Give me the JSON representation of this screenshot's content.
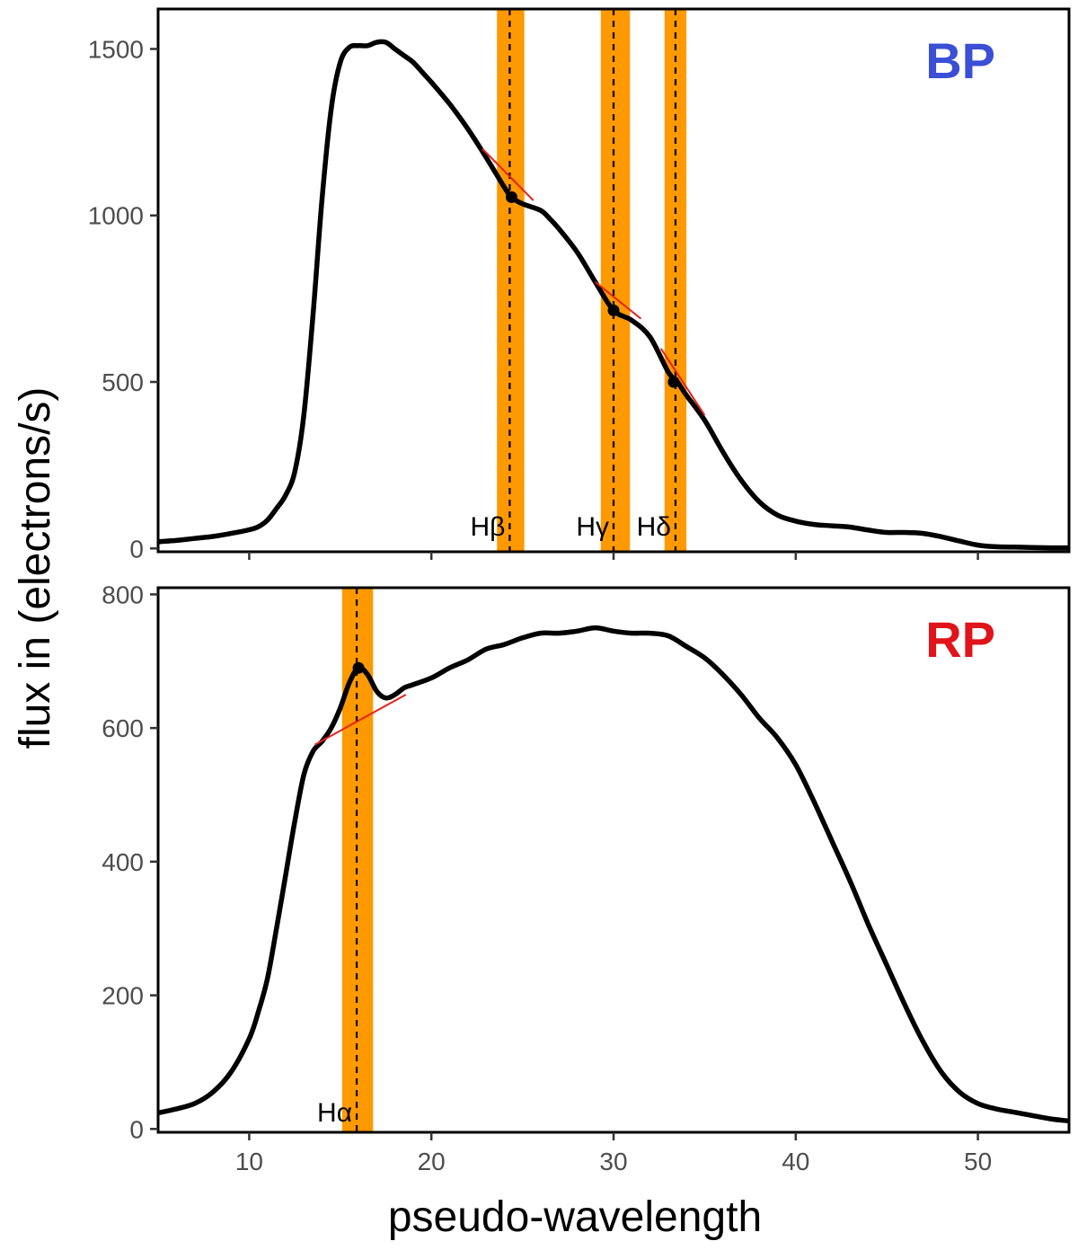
{
  "chart_data": [
    {
      "type": "line",
      "panel_label": "BP",
      "panel_label_color": "#3a4fd6",
      "xlim": [
        5,
        55
      ],
      "ylim": [
        -10,
        1620
      ],
      "yticks": [
        0,
        500,
        1000,
        1500
      ],
      "xticks": [
        10,
        20,
        30,
        40,
        50
      ],
      "show_x_tick_labels": false,
      "series": [
        {
          "name": "BP spectrum",
          "color": "#000000",
          "points": [
            [
              5,
              20
            ],
            [
              6,
              24
            ],
            [
              7,
              30
            ],
            [
              8,
              36
            ],
            [
              9,
              45
            ],
            [
              10,
              56
            ],
            [
              10.5,
              65
            ],
            [
              11,
              85
            ],
            [
              11.5,
              120
            ],
            [
              12,
              160
            ],
            [
              12.5,
              230
            ],
            [
              13,
              400
            ],
            [
              13.5,
              700
            ],
            [
              14,
              1050
            ],
            [
              14.5,
              1320
            ],
            [
              15,
              1460
            ],
            [
              15.5,
              1505
            ],
            [
              16,
              1510
            ],
            [
              16.5,
              1510
            ],
            [
              17,
              1520
            ],
            [
              17.5,
              1520
            ],
            [
              18,
              1500
            ],
            [
              18.5,
              1480
            ],
            [
              19,
              1460
            ],
            [
              19.5,
              1430
            ],
            [
              20,
              1400
            ],
            [
              21,
              1335
            ],
            [
              22,
              1260
            ],
            [
              23,
              1175
            ],
            [
              24,
              1085
            ],
            [
              24.4,
              1055
            ],
            [
              25,
              1035
            ],
            [
              26,
              1015
            ],
            [
              26.5,
              990
            ],
            [
              27,
              960
            ],
            [
              28,
              890
            ],
            [
              29,
              800
            ],
            [
              30,
              715
            ],
            [
              31,
              685
            ],
            [
              32,
              635
            ],
            [
              33,
              530
            ],
            [
              33.5,
              500
            ],
            [
              34,
              460
            ],
            [
              35,
              385
            ],
            [
              36,
              290
            ],
            [
              37,
              205
            ],
            [
              38,
              140
            ],
            [
              39,
              100
            ],
            [
              40,
              82
            ],
            [
              41,
              72
            ],
            [
              42,
              68
            ],
            [
              43,
              64
            ],
            [
              44,
              55
            ],
            [
              45,
              48
            ],
            [
              46,
              48
            ],
            [
              47,
              45
            ],
            [
              48,
              35
            ],
            [
              49,
              22
            ],
            [
              50,
              10
            ],
            [
              51,
              5
            ],
            [
              52,
              4
            ],
            [
              53,
              3
            ],
            [
              54,
              2
            ],
            [
              55,
              2
            ]
          ]
        },
        {
          "name": "continuum segments",
          "color": "#e8201a",
          "segments": [
            [
              [
                22.8,
                1200
              ],
              [
                25.6,
                1045
              ]
            ],
            [
              [
                29.0,
                800
              ],
              [
                31.5,
                690
              ]
            ],
            [
              [
                32.6,
                600
              ],
              [
                35.0,
                400
              ]
            ]
          ]
        }
      ],
      "markers": [
        [
          24.4,
          1055
        ],
        [
          30.0,
          715
        ],
        [
          33.3,
          500
        ]
      ],
      "bands": [
        {
          "label": "Hβ",
          "xmin": 23.6,
          "xmax": 25.1,
          "center": 24.3
        },
        {
          "label": "Hγ",
          "xmin": 29.3,
          "xmax": 30.9,
          "center": 30.0
        },
        {
          "label": "Hδ",
          "xmin": 32.8,
          "xmax": 34.0,
          "center": 33.4
        }
      ]
    },
    {
      "type": "line",
      "panel_label": "RP",
      "panel_label_color": "#e0141a",
      "xlim": [
        5,
        55
      ],
      "ylim": [
        -5,
        810
      ],
      "yticks": [
        0,
        200,
        400,
        600,
        800
      ],
      "xticks": [
        10,
        20,
        30,
        40,
        50
      ],
      "show_x_tick_labels": true,
      "series": [
        {
          "name": "RP spectrum",
          "color": "#000000",
          "points": [
            [
              5,
              24
            ],
            [
              6,
              30
            ],
            [
              7,
              38
            ],
            [
              8,
              55
            ],
            [
              9,
              85
            ],
            [
              10,
              135
            ],
            [
              10.5,
              175
            ],
            [
              11,
              225
            ],
            [
              11.5,
              300
            ],
            [
              12,
              380
            ],
            [
              12.5,
              460
            ],
            [
              13,
              530
            ],
            [
              13.5,
              565
            ],
            [
              14,
              580
            ],
            [
              14.5,
              600
            ],
            [
              15,
              630
            ],
            [
              15.5,
              668
            ],
            [
              16,
              690
            ],
            [
              16.5,
              680
            ],
            [
              17,
              655
            ],
            [
              17.5,
              645
            ],
            [
              18,
              650
            ],
            [
              18.5,
              660
            ],
            [
              19,
              665
            ],
            [
              20,
              675
            ],
            [
              21,
              690
            ],
            [
              22,
              702
            ],
            [
              23,
              718
            ],
            [
              24,
              725
            ],
            [
              25,
              735
            ],
            [
              26,
              742
            ],
            [
              27,
              742
            ],
            [
              28,
              745
            ],
            [
              29,
              750
            ],
            [
              30,
              745
            ],
            [
              31,
              742
            ],
            [
              32,
              742
            ],
            [
              33,
              738
            ],
            [
              34,
              722
            ],
            [
              35,
              705
            ],
            [
              36,
              680
            ],
            [
              37,
              650
            ],
            [
              38,
              615
            ],
            [
              39,
              585
            ],
            [
              40,
              545
            ],
            [
              41,
              490
            ],
            [
              42,
              430
            ],
            [
              43,
              370
            ],
            [
              44,
              305
            ],
            [
              45,
              245
            ],
            [
              46,
              185
            ],
            [
              47,
              130
            ],
            [
              48,
              85
            ],
            [
              49,
              55
            ],
            [
              50,
              38
            ],
            [
              51,
              30
            ],
            [
              52,
              25
            ],
            [
              53,
              20
            ],
            [
              54,
              15
            ],
            [
              55,
              12
            ]
          ]
        },
        {
          "name": "continuum segments",
          "color": "#e8201a",
          "segments": [
            [
              [
                13.6,
                575
              ],
              [
                18.6,
                650
              ]
            ]
          ]
        }
      ],
      "markers": [
        [
          16.0,
          690
        ]
      ],
      "bands": [
        {
          "label": "Hα",
          "xmin": 15.1,
          "xmax": 16.8,
          "center": 15.9
        }
      ]
    }
  ],
  "ylabel": "flux in (electrons/s)",
  "xlabel": "pseudo-wavelength",
  "band_color": "#ff9900"
}
